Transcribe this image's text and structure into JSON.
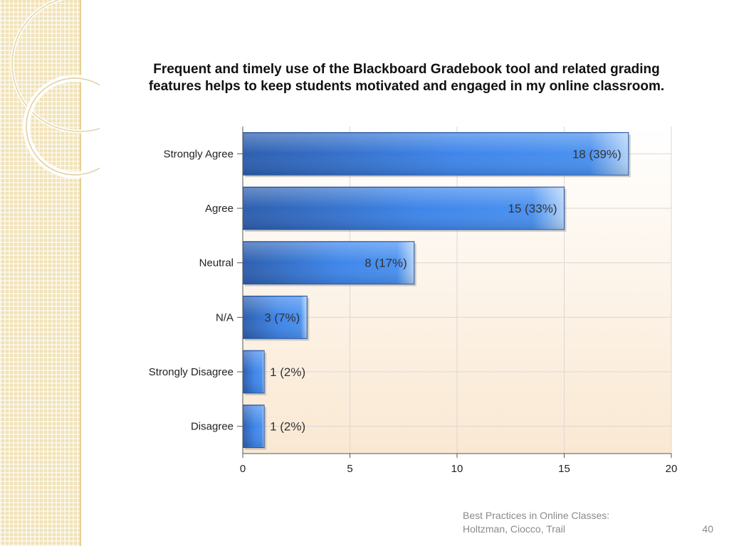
{
  "slide": {
    "footer_line1": "Best Practices in Online Classes:",
    "footer_line2": "Holtzman, Ciocco, Trail",
    "page_number": "40"
  },
  "colors": {
    "sidebar_background": "#f1e2b6",
    "bar_dark": "#2e5fae",
    "bar_mid": "#3f86ea",
    "bar_light": "#b4d3f7",
    "plot_background_bottom": "#fae8d2"
  },
  "chart_data": {
    "type": "bar",
    "orientation": "horizontal",
    "title": "Frequent and timely use of the Blackboard Gradebook tool and related grading features helps to keep students motivated and engaged in my online classroom.",
    "categories": [
      "Strongly Agree",
      "Agree",
      "Neutral",
      "N/A",
      "Strongly Disagree",
      "Disagree"
    ],
    "values": [
      18,
      15,
      8,
      3,
      1,
      1
    ],
    "data_labels": [
      "18 (39%)",
      "15 (33%)",
      "8 (17%)",
      "3 (7%)",
      "1 (2%)",
      "1 (2%)"
    ],
    "xlim": [
      0,
      20
    ],
    "x_ticks": [
      0,
      5,
      10,
      15,
      20
    ],
    "grid": true
  }
}
